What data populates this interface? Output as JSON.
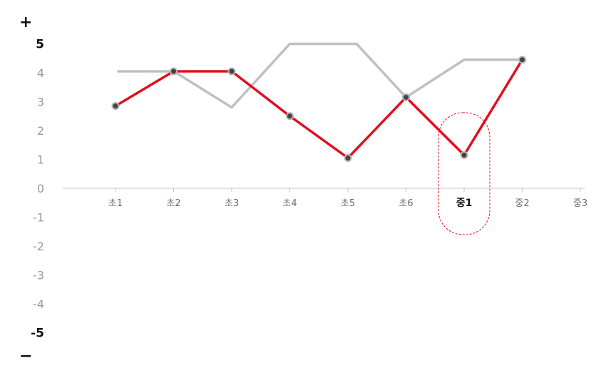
{
  "chart_data": {
    "type": "line",
    "categories": [
      "초1",
      "초2",
      "초3",
      "초4",
      "초5",
      "초6",
      "중1",
      "중2",
      "중3"
    ],
    "highlight_category": "중1",
    "y_ticks": [
      "5",
      "4",
      "3",
      "2",
      "1",
      "0",
      "-1",
      "-2",
      "-3",
      "-4",
      "-5"
    ],
    "ylim": [
      -5,
      5
    ],
    "plus_label": "+",
    "minus_label": "−",
    "series": [
      {
        "color": "#c0c0c0",
        "points": [
          {
            "x": 0.05,
            "y": 4.05
          },
          {
            "x": 1.0,
            "y": 4.05
          },
          {
            "x": 2.0,
            "y": 2.8
          },
          {
            "x": 3.0,
            "y": 5.0
          },
          {
            "x": 4.15,
            "y": 5.0
          },
          {
            "x": 5.0,
            "y": 3.15
          },
          {
            "x": 6.0,
            "y": 4.45
          },
          {
            "x": 7.0,
            "y": 4.45
          }
        ]
      },
      {
        "color": "#e0101e",
        "markers": true,
        "points": [
          {
            "x": 0.0,
            "y": 2.85
          },
          {
            "x": 1.0,
            "y": 4.05
          },
          {
            "x": 2.0,
            "y": 4.05
          },
          {
            "x": 3.0,
            "y": 2.5
          },
          {
            "x": 4.0,
            "y": 1.05
          },
          {
            "x": 5.0,
            "y": 3.15
          },
          {
            "x": 6.0,
            "y": 1.15
          },
          {
            "x": 7.0,
            "y": 4.45
          }
        ]
      }
    ]
  }
}
